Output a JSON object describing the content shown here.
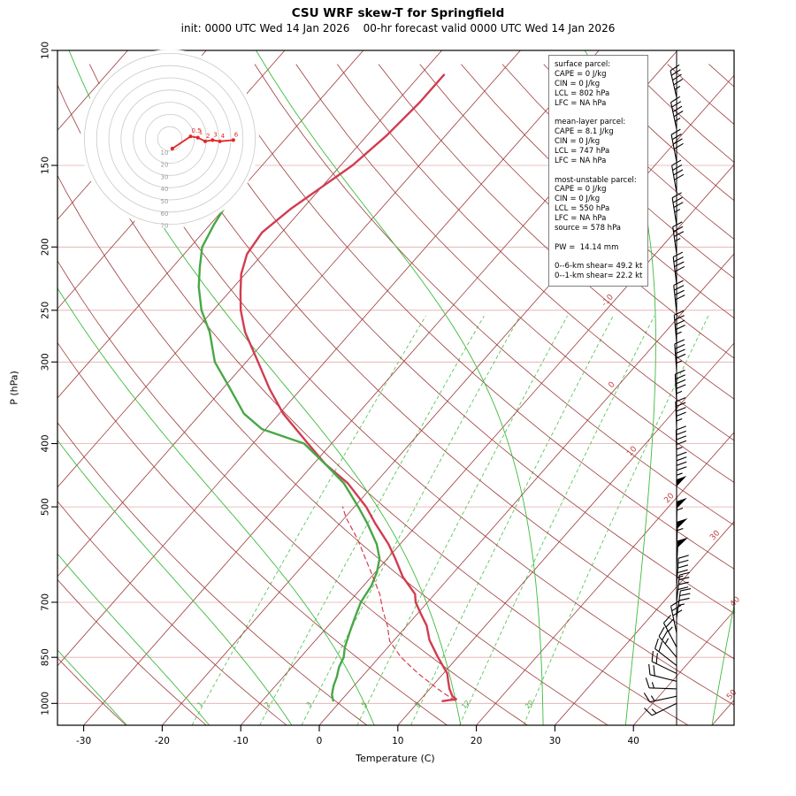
{
  "chart_data": {
    "type": "line",
    "title": "CSU WRF skew-T for Springfield",
    "subtitle": "init: 0000 UTC Wed 14 Jan 2026    00-hr forecast valid 0000 UTC Wed 14 Jan 2026",
    "xlabel": "Temperature (C)",
    "ylabel": "P (hPa)",
    "x_ticks_c": [
      -30,
      -20,
      -10,
      0,
      10,
      20,
      30,
      40
    ],
    "pressure_ticks_hpa": [
      100,
      150,
      200,
      250,
      300,
      400,
      500,
      700,
      850,
      1000
    ],
    "isotherm_edge_labels": [
      {
        "t": -10,
        "p": 245
      },
      {
        "t": 0,
        "p": 330
      },
      {
        "t": 10,
        "p": 417
      },
      {
        "t": 20,
        "p": 492
      },
      {
        "t": 30,
        "p": 561
      },
      {
        "t": 40,
        "p": 709
      },
      {
        "t": 50,
        "p": 984
      }
    ],
    "series": [
      {
        "name": "temperature",
        "units": "p_hPa_T_C",
        "color": "#d23c50",
        "style": "solid",
        "points_p_T": [
          [
            109,
            -57
          ],
          [
            120,
            -57
          ],
          [
            135,
            -57.5
          ],
          [
            150,
            -58.5
          ],
          [
            162,
            -60
          ],
          [
            175,
            -61.5
          ],
          [
            190,
            -62.5
          ],
          [
            205,
            -62
          ],
          [
            220,
            -60.5
          ],
          [
            235,
            -58.5
          ],
          [
            250,
            -56.5
          ],
          [
            270,
            -53.5
          ],
          [
            300,
            -48.5
          ],
          [
            330,
            -44
          ],
          [
            360,
            -39.5
          ],
          [
            400,
            -33
          ],
          [
            430,
            -28.5
          ],
          [
            460,
            -23.5
          ],
          [
            500,
            -18.5
          ],
          [
            530,
            -15.5
          ],
          [
            570,
            -11.5
          ],
          [
            600,
            -9
          ],
          [
            640,
            -6
          ],
          [
            680,
            -2.5
          ],
          [
            700,
            -1.5
          ],
          [
            730,
            0.5
          ],
          [
            760,
            2.5
          ],
          [
            800,
            4.5
          ],
          [
            850,
            7.5
          ],
          [
            900,
            10.5
          ],
          [
            925,
            11.5
          ],
          [
            950,
            12.5
          ],
          [
            975,
            13.7
          ],
          [
            985,
            14.5
          ],
          [
            992,
            13
          ]
        ]
      },
      {
        "name": "dewpoint",
        "units": "p_hPa_T_C",
        "color": "#46a846",
        "style": "solid",
        "points_p_T": [
          [
            175,
            -70
          ],
          [
            185,
            -69.5
          ],
          [
            200,
            -68.5
          ],
          [
            215,
            -66.5
          ],
          [
            230,
            -64.5
          ],
          [
            250,
            -61.5
          ],
          [
            270,
            -58
          ],
          [
            300,
            -54
          ],
          [
            330,
            -49
          ],
          [
            360,
            -44.5
          ],
          [
            380,
            -40.5
          ],
          [
            400,
            -33.5
          ],
          [
            430,
            -28.5
          ],
          [
            460,
            -24
          ],
          [
            500,
            -19.5
          ],
          [
            530,
            -16.5
          ],
          [
            570,
            -13
          ],
          [
            600,
            -11
          ],
          [
            630,
            -9.8
          ],
          [
            660,
            -9
          ],
          [
            700,
            -8.5
          ],
          [
            740,
            -7.5
          ],
          [
            780,
            -6.5
          ],
          [
            820,
            -5.5
          ],
          [
            850,
            -4.5
          ],
          [
            880,
            -4
          ],
          [
            910,
            -3.2
          ],
          [
            940,
            -2.6
          ],
          [
            970,
            -1.8
          ],
          [
            990,
            -1
          ]
        ]
      },
      {
        "name": "parcel",
        "units": "p_hPa_T_C",
        "color": "#d23c50",
        "style": "dashed",
        "points_p_T": [
          [
            990,
            14.5
          ],
          [
            950,
            11
          ],
          [
            900,
            6.8
          ],
          [
            850,
            2.8
          ],
          [
            802,
            -0.5
          ],
          [
            760,
            -2.5
          ],
          [
            720,
            -4.8
          ],
          [
            680,
            -7
          ],
          [
            640,
            -9.8
          ],
          [
            600,
            -12.8
          ],
          [
            560,
            -16
          ],
          [
            520,
            -19.8
          ],
          [
            500,
            -21.5
          ]
        ]
      }
    ]
  },
  "background": {
    "isotherms_c": [
      -110,
      -100,
      -90,
      -80,
      -70,
      -60,
      -50,
      -40,
      -30,
      -20,
      -10,
      0,
      10,
      20,
      30,
      40,
      50
    ],
    "dry_adiabats_c": [
      -40,
      -30,
      -20,
      -10,
      0,
      10,
      20,
      30,
      40,
      50,
      60,
      70,
      80,
      90,
      100,
      110,
      120,
      130,
      140,
      150,
      160,
      170,
      180,
      190,
      200,
      210,
      220
    ],
    "moist_adiabats_c": [
      -35,
      -24.5,
      -14,
      -3.5,
      7,
      18,
      28.5,
      39,
      50
    ],
    "mixing_ratio_g_kg": [
      1,
      2,
      3,
      5,
      8,
      12,
      20
    ],
    "pressure_lines_hpa": [
      100,
      150,
      200,
      250,
      300,
      400,
      500,
      700,
      850,
      1000
    ]
  },
  "wind_barbs": {
    "units": "kt",
    "barbs": [
      [
        118,
        45,
        -13
      ],
      [
        132,
        45,
        -12
      ],
      [
        148,
        40,
        -11
      ],
      [
        165,
        40,
        -10
      ],
      [
        185,
        35,
        -9
      ],
      [
        205,
        35,
        -8
      ],
      [
        228,
        40,
        -7
      ],
      [
        252,
        40,
        -6
      ],
      [
        280,
        45,
        -5
      ],
      [
        310,
        45,
        -4
      ],
      [
        345,
        45,
        -3
      ],
      [
        380,
        45,
        -2
      ],
      [
        420,
        45,
        -1
      ],
      [
        460,
        45,
        0
      ],
      [
        500,
        50,
        0
      ],
      [
        540,
        55,
        1
      ],
      [
        580,
        55,
        2
      ],
      [
        620,
        50,
        3
      ],
      [
        660,
        45,
        4
      ],
      [
        700,
        40,
        6
      ],
      [
        740,
        35,
        8
      ],
      [
        780,
        30,
        -12
      ],
      [
        820,
        25,
        -28
      ],
      [
        850,
        24,
        -40
      ],
      [
        875,
        22,
        -52
      ],
      [
        900,
        20,
        -64
      ],
      [
        925,
        18,
        -76
      ],
      [
        950,
        16,
        -88
      ],
      [
        975,
        15,
        -102
      ],
      [
        1000,
        13,
        -116
      ]
    ]
  },
  "hodograph": {
    "ring_labels_kt": [
      10,
      20,
      30,
      40,
      50,
      60,
      70
    ],
    "trace_kt": [
      {
        "km": 0,
        "u": 2,
        "v": -8
      },
      {
        "km": 0.5,
        "u": 17,
        "v": 2
      },
      {
        "km": 1,
        "u": 23,
        "v": 1
      },
      {
        "km": 2,
        "u": 29,
        "v": -2
      },
      {
        "km": 3,
        "u": 35,
        "v": -1
      },
      {
        "km": 4,
        "u": 41,
        "v": -2
      },
      {
        "km": 6,
        "u": 52,
        "v": -1
      }
    ]
  },
  "info_box": {
    "sections": [
      {
        "header": "surface parcel:",
        "lines": [
          "CAPE = 0 J/kg",
          "CIN = 0 J/kg",
          "LCL = 802 hPa",
          "LFC = NA hPa"
        ]
      },
      {
        "header": "mean-layer parcel:",
        "lines": [
          "CAPE = 8.1 J/kg",
          "CIN = 0 J/kg",
          "LCL = 747 hPa",
          "LFC = NA hPa"
        ]
      },
      {
        "header": "most-unstable parcel:",
        "lines": [
          "CAPE = 0 J/kg",
          "CIN = 0 J/kg",
          "LCL = 550 hPa",
          "LFC = NA hPa",
          "source = 578 hPa"
        ]
      }
    ],
    "pw": "PW =  14.14 mm",
    "shear": [
      "0--6-km shear= 49.2 kt",
      "0--1-km shear= 22.2 kt"
    ]
  },
  "colors": {
    "grid_red": "#9e3b3b",
    "grid_label": "#c04040",
    "pressure_line": "#e2abab",
    "mixing": "#59c659",
    "mixing_label": "#3fae3f",
    "moist": "#3dbb3d",
    "temperature": "#d23c50",
    "dewpoint": "#46a846",
    "hodo_ring": "#c9c9c9",
    "hodo_label": "#999999",
    "hodo_trace": "#e02828",
    "barb": "#000000",
    "frame": "#000000"
  }
}
